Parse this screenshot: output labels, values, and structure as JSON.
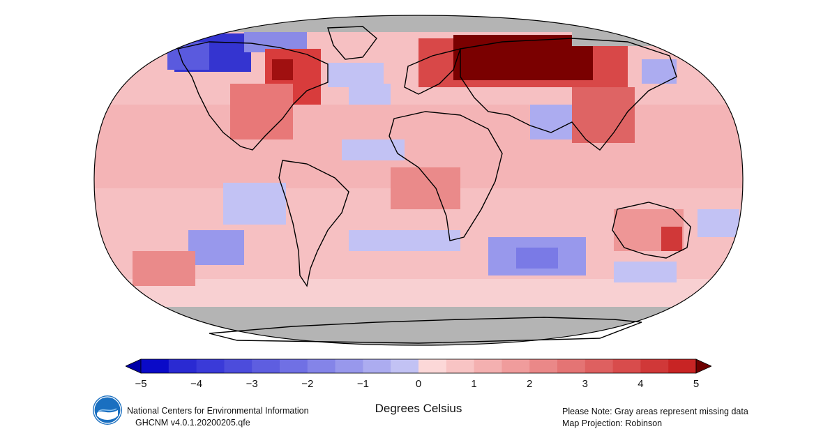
{
  "map": {
    "projection": "Robinson",
    "missing_color": "#b4b4b4",
    "coastline_color": "#000000",
    "regions": [
      {
        "name": "alaska-canada",
        "anomaly": -4.0
      },
      {
        "name": "eastern-canada",
        "anomaly": 4.0
      },
      {
        "name": "siberia",
        "anomaly": 5.0
      },
      {
        "name": "south-asia",
        "anomaly": -1.0
      },
      {
        "name": "indian-ocean",
        "anomaly": -2.0
      },
      {
        "name": "southeast-australia",
        "anomaly": 4.0
      }
    ]
  },
  "colorbar": {
    "min": -5,
    "max": 5,
    "step": 0.5,
    "tick_labels": [
      "−5",
      "−4",
      "−3",
      "−2",
      "−1",
      "0",
      "1",
      "2",
      "3",
      "4",
      "5"
    ],
    "colors": [
      "#0a0ac8",
      "#2a2ad2",
      "#3a3ad8",
      "#4c4cdc",
      "#5e5ee0",
      "#7070e4",
      "#8484e8",
      "#9898ec",
      "#acacf0",
      "#c2c2f4",
      "#fcd8d8",
      "#f8c4c4",
      "#f4b0b0",
      "#f09c9c",
      "#ea8888",
      "#e47474",
      "#de6060",
      "#d84c4c",
      "#d03838",
      "#c82424"
    ],
    "low_extend_color": "#0000a8",
    "high_extend_color": "#6e0000"
  },
  "units_label": "Degrees Celsius",
  "credits": {
    "line1": "National Centers for Environmental Information",
    "line2": "GHCNM v4.0.1.20200205.qfe"
  },
  "notes": {
    "line1": "Please Note: Gray areas represent missing data",
    "line2": "Map Projection: Robinson"
  },
  "logo": {
    "text": "NOAA",
    "color": "#1a6fc0"
  }
}
